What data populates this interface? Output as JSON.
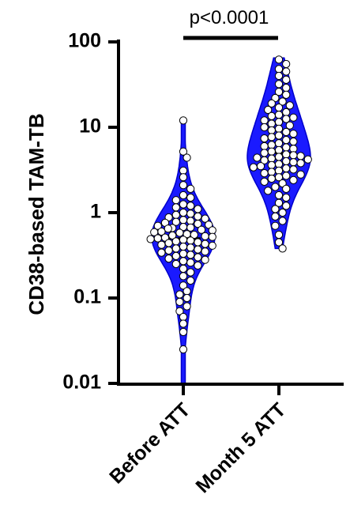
{
  "chart_data": {
    "type": "violin",
    "ylabel": "CD38-based TAM-TB",
    "y_scale": "log10",
    "ylim": [
      0.01,
      100
    ],
    "y_ticks": [
      {
        "value": 0.01,
        "label": "0.01"
      },
      {
        "value": 0.1,
        "label": "0.1"
      },
      {
        "value": 1,
        "label": "1"
      },
      {
        "value": 10,
        "label": "10"
      },
      {
        "value": 100,
        "label": "100"
      }
    ],
    "categories": [
      "Before ATT",
      "Month 5 ATT"
    ],
    "violin_color": "#1a1aff",
    "point_color": "#ffffff",
    "annotation": {
      "text": "p<0.0001",
      "between": [
        "Before ATT",
        "Month 5 ATT"
      ]
    },
    "series": [
      {
        "category": "Before ATT",
        "median": 0.5,
        "min": 0.01,
        "max": 12,
        "values": [
          12,
          5.2,
          4.4,
          3.1,
          2.6,
          2.1,
          1.9,
          1.6,
          1.5,
          1.4,
          1.25,
          1.2,
          1.15,
          1.1,
          1.0,
          0.97,
          0.94,
          0.9,
          0.88,
          0.85,
          0.82,
          0.8,
          0.78,
          0.76,
          0.74,
          0.72,
          0.7,
          0.68,
          0.67,
          0.66,
          0.65,
          0.63,
          0.62,
          0.6,
          0.59,
          0.58,
          0.56,
          0.55,
          0.54,
          0.53,
          0.52,
          0.51,
          0.5,
          0.49,
          0.48,
          0.47,
          0.46,
          0.45,
          0.44,
          0.43,
          0.42,
          0.41,
          0.4,
          0.39,
          0.38,
          0.37,
          0.36,
          0.35,
          0.34,
          0.33,
          0.32,
          0.31,
          0.3,
          0.29,
          0.28,
          0.27,
          0.26,
          0.25,
          0.24,
          0.22,
          0.2,
          0.18,
          0.16,
          0.14,
          0.12,
          0.11,
          0.1,
          0.09,
          0.08,
          0.07,
          0.06,
          0.05,
          0.04,
          0.025
        ]
      },
      {
        "category": "Month 5 ATT",
        "median": 5.0,
        "min": 0.38,
        "max": 65,
        "values": [
          62,
          55,
          48,
          45,
          40,
          36,
          32,
          29,
          26,
          24,
          22,
          20,
          19,
          18,
          17,
          16,
          15,
          14,
          13.5,
          13,
          12.5,
          12,
          11.5,
          11,
          10.5,
          10,
          9.6,
          9.2,
          8.8,
          8.4,
          8,
          7.7,
          7.4,
          7.1,
          6.8,
          6.5,
          6.2,
          6,
          5.8,
          5.6,
          5.4,
          5.2,
          5,
          4.8,
          4.7,
          4.6,
          4.5,
          4.4,
          4.3,
          4.2,
          4.1,
          4,
          3.9,
          3.8,
          3.7,
          3.6,
          3.5,
          3.4,
          3.3,
          3.2,
          3.1,
          3.0,
          2.9,
          2.8,
          2.7,
          2.6,
          2.5,
          2.4,
          2.3,
          2.2,
          2.0,
          1.9,
          1.8,
          1.6,
          1.5,
          1.3,
          1.2,
          1.1,
          1.0,
          0.9,
          0.8,
          0.7,
          0.55,
          0.45,
          0.38
        ]
      }
    ]
  }
}
